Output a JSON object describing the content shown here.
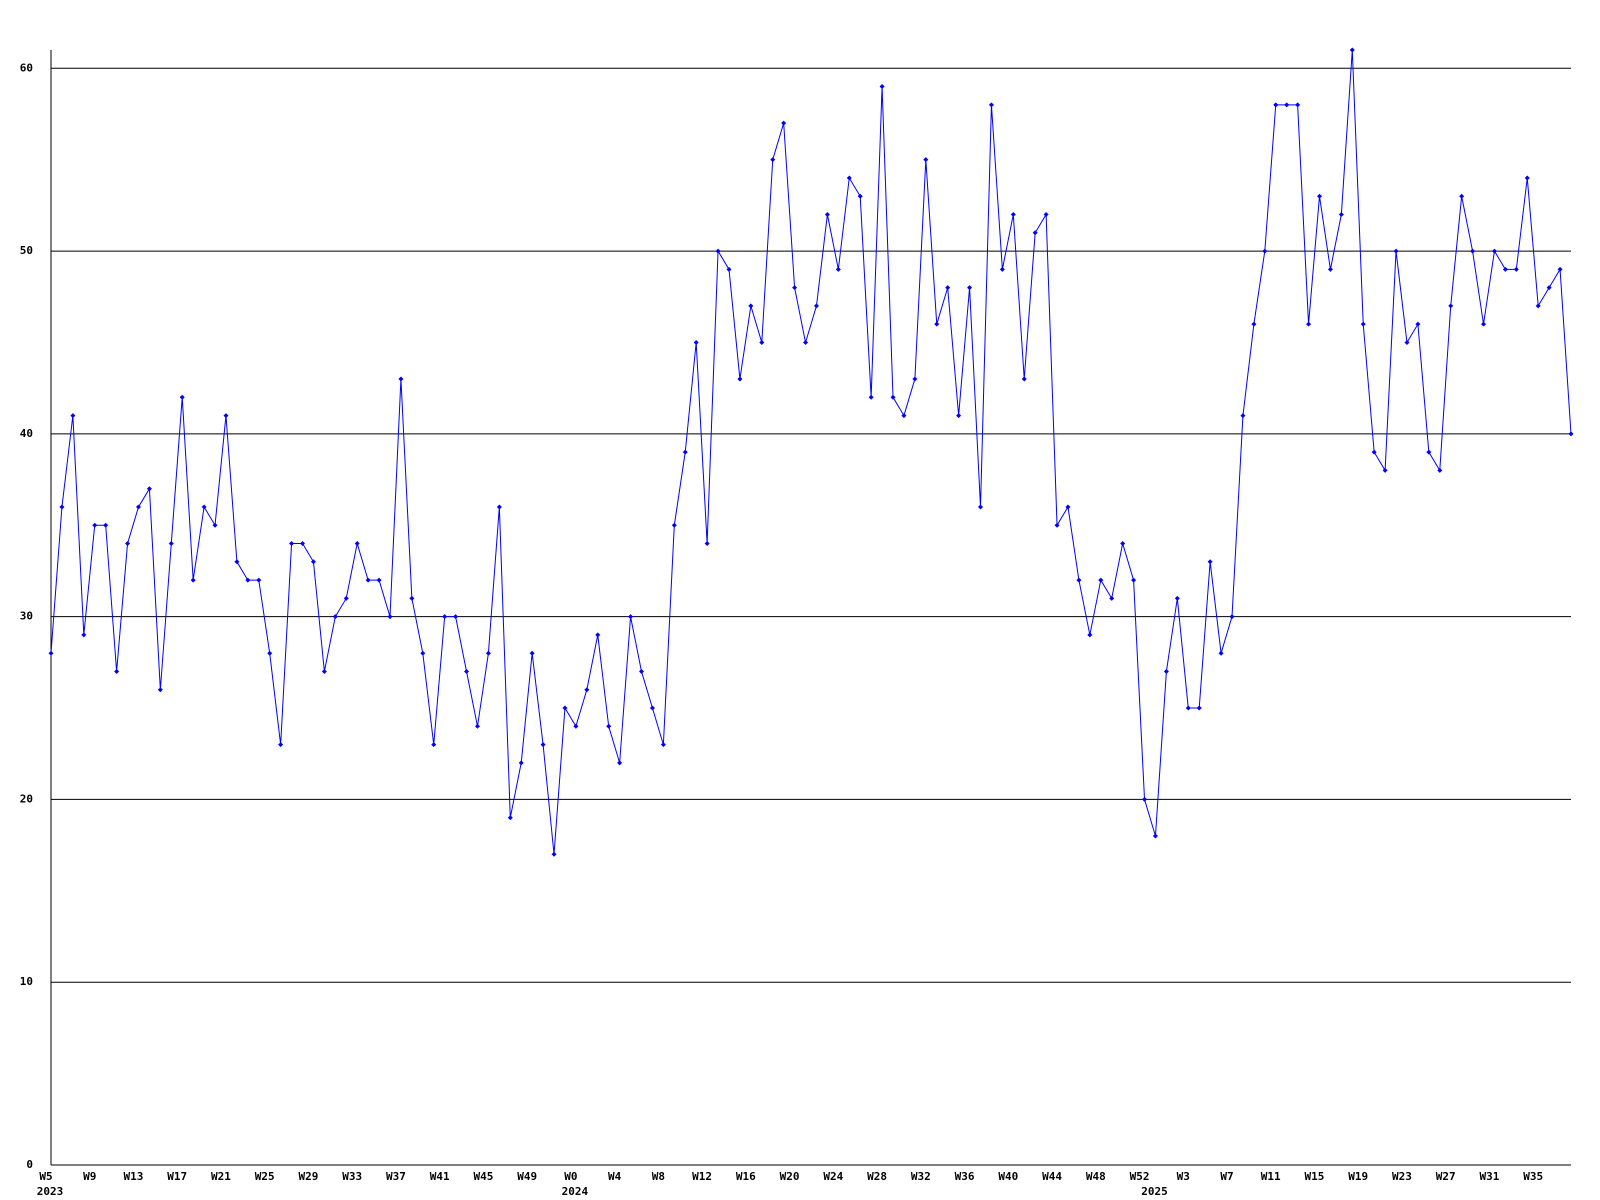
{
  "chart_data": {
    "type": "line",
    "categories": [
      "W5",
      null,
      null,
      null,
      "W9",
      null,
      null,
      null,
      "W13",
      null,
      null,
      null,
      "W17",
      null,
      null,
      null,
      "W21",
      null,
      null,
      null,
      "W25",
      null,
      null,
      null,
      "W29",
      null,
      null,
      null,
      "W33",
      null,
      null,
      null,
      "W37",
      null,
      null,
      null,
      "W41",
      null,
      null,
      null,
      "W45",
      null,
      null,
      null,
      "W49",
      null,
      null,
      null,
      "W0",
      null,
      null,
      null,
      "W4",
      null,
      null,
      null,
      "W8",
      null,
      null,
      null,
      "W12",
      null,
      null,
      null,
      "W16",
      null,
      null,
      null,
      "W20",
      null,
      null,
      null,
      "W24",
      null,
      null,
      null,
      "W28",
      null,
      null,
      null,
      "W32",
      null,
      null,
      null,
      "W36",
      null,
      null,
      null,
      "W40",
      null,
      null,
      null,
      "W44",
      null,
      null,
      null,
      "W48",
      null,
      null,
      null,
      "W52",
      null,
      null,
      null,
      "W3",
      null,
      null,
      null,
      "W7",
      null,
      null,
      null,
      "W11",
      null,
      null,
      null,
      "W15",
      null,
      null,
      null,
      "W19",
      null,
      null,
      null,
      "W23",
      null,
      null,
      null,
      "W27",
      null,
      null,
      null,
      "W31",
      null,
      null,
      null,
      "W35",
      null,
      null,
      null
    ],
    "year_categories": [
      "2023",
      null,
      null,
      null,
      null,
      null,
      null,
      null,
      null,
      null,
      null,
      null,
      null,
      null,
      null,
      null,
      null,
      null,
      null,
      null,
      null,
      null,
      null,
      null,
      null,
      null,
      null,
      null,
      null,
      null,
      null,
      null,
      null,
      null,
      null,
      null,
      null,
      null,
      null,
      null,
      null,
      null,
      null,
      null,
      null,
      null,
      null,
      null,
      "2024",
      null,
      null,
      null,
      null,
      null,
      null,
      null,
      null,
      null,
      null,
      null,
      null,
      null,
      null,
      null,
      null,
      null,
      null,
      null,
      null,
      null,
      null,
      null,
      null,
      null,
      null,
      null,
      null,
      null,
      null,
      null,
      null,
      null,
      null,
      null,
      null,
      null,
      null,
      null,
      null,
      null,
      null,
      null,
      null,
      null,
      null,
      null,
      null,
      null,
      null,
      null,
      null,
      "2025",
      null,
      null,
      null,
      null,
      null,
      null,
      null,
      null,
      null,
      null,
      null,
      null,
      null,
      null,
      null,
      null,
      null,
      null,
      null,
      null,
      null,
      null,
      null,
      null,
      null,
      null,
      null,
      null,
      null,
      null,
      null,
      null,
      null,
      null,
      null,
      null,
      null,
      null
    ],
    "values": [
      28,
      36,
      41,
      29,
      35,
      35,
      27,
      34,
      36,
      37,
      26,
      34,
      42,
      32,
      36,
      35,
      41,
      33,
      32,
      32,
      28,
      23,
      34,
      34,
      33,
      27,
      30,
      31,
      34,
      32,
      32,
      30,
      43,
      31,
      28,
      23,
      30,
      30,
      27,
      24,
      28,
      36,
      19,
      22,
      28,
      23,
      17,
      25,
      24,
      26,
      29,
      24,
      22,
      30,
      27,
      25,
      23,
      35,
      39,
      45,
      34,
      50,
      49,
      43,
      47,
      45,
      55,
      57,
      48,
      45,
      47,
      52,
      49,
      54,
      53,
      42,
      59,
      42,
      41,
      43,
      55,
      46,
      48,
      41,
      48,
      36,
      58,
      49,
      52,
      43,
      51,
      52,
      35,
      36,
      32,
      29,
      32,
      31,
      34,
      32,
      20,
      18,
      27,
      31,
      25,
      25,
      33,
      28,
      30,
      41,
      46,
      50,
      58,
      58,
      58,
      46,
      53,
      49,
      52,
      61,
      46,
      39,
      38,
      50,
      45,
      46,
      39,
      38,
      47,
      53,
      50,
      46,
      50,
      49,
      49,
      54,
      47,
      48,
      49,
      40
    ],
    "color": "#0000ff",
    "ylim": [
      0,
      61
    ],
    "yticks": [
      0,
      10,
      20,
      30,
      40,
      50,
      60
    ],
    "grid": true
  }
}
